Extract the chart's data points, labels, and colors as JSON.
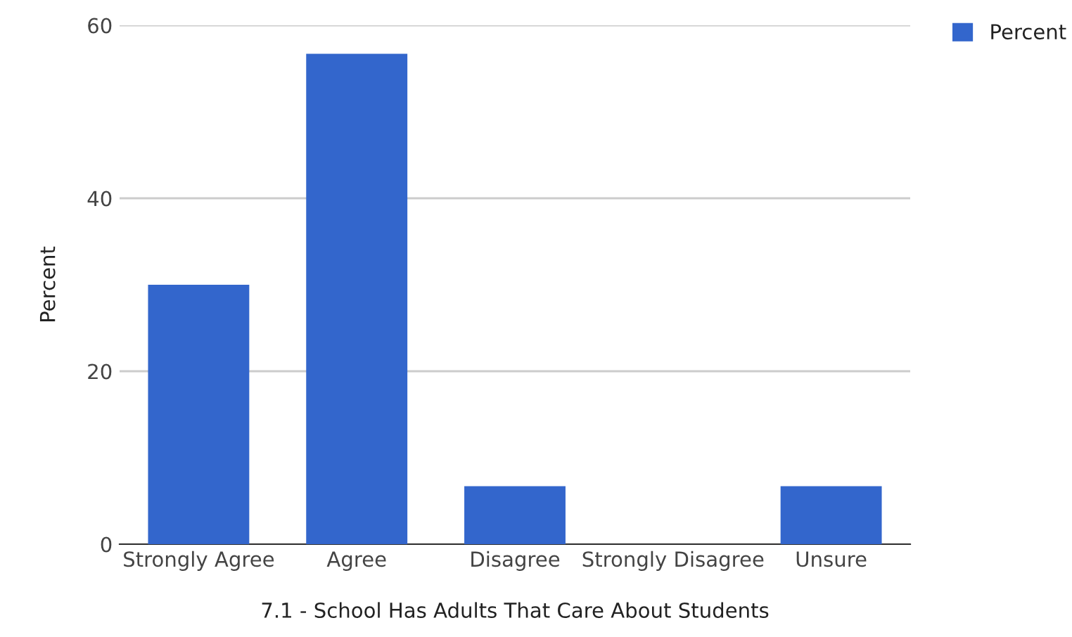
{
  "chart_data": {
    "type": "bar",
    "xlabel": "7.1 - School Has Adults That Care About Students",
    "ylabel": "Percent",
    "categories": [
      "Strongly Agree",
      "Agree",
      "Disagree",
      "Strongly Disagree",
      "Unsure"
    ],
    "series": [
      {
        "name": "Percent",
        "color": "#3366cc",
        "values": [
          30,
          56.7,
          6.7,
          0,
          6.7
        ]
      }
    ],
    "ylim": [
      0,
      60
    ],
    "yticks": [
      0,
      20,
      40,
      60
    ],
    "grid": "y",
    "legend": "top right"
  }
}
